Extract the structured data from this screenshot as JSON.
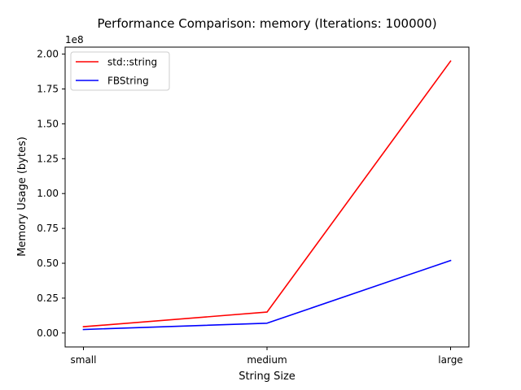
{
  "chart_data": {
    "type": "line",
    "title": "Performance Comparison: memory (Iterations: 100000)",
    "xlabel": "String Size",
    "ylabel": "Memory Usage (bytes)",
    "categories": [
      "small",
      "medium",
      "large"
    ],
    "y_tick_labels": [
      "0.00",
      "0.25",
      "0.50",
      "0.75",
      "1.00",
      "1.25",
      "1.50",
      "1.75",
      "2.00"
    ],
    "y_ticks": [
      0,
      25000000,
      50000000,
      75000000,
      100000000,
      125000000,
      150000000,
      175000000,
      200000000
    ],
    "y_offset_label": "1e8",
    "ylim": [
      -10000000,
      205000000
    ],
    "grid": false,
    "legend_position": "upper-left",
    "series": [
      {
        "name": "std::string",
        "color": "#ff0000",
        "values": [
          4500000,
          15000000,
          195000000
        ]
      },
      {
        "name": "FBString",
        "color": "#0000ff",
        "values": [
          2500000,
          7000000,
          52000000
        ]
      }
    ]
  }
}
